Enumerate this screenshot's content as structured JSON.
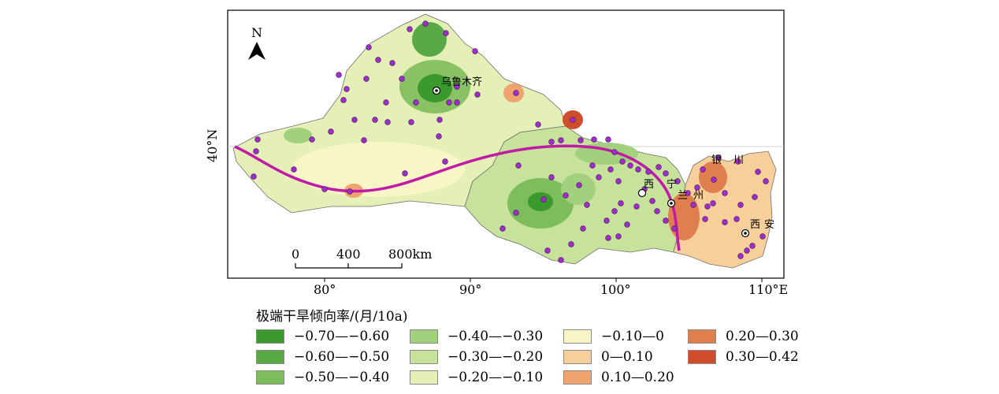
{
  "map": {
    "north_label": "N",
    "lat_label": "40°N",
    "lon_labels": [
      "80°",
      "90°",
      "100°",
      "110°E"
    ],
    "scale_labels": [
      "0",
      "400",
      "800km"
    ],
    "cities": [
      "乌鲁木齐",
      "银",
      "川",
      "西",
      "宁",
      "兰",
      "州",
      "西",
      "安"
    ],
    "colors": {
      "station": "#a22bd0",
      "route": "#c21aa8",
      "boundary": "#6f6f6f",
      "frame": "#000000"
    }
  },
  "legend": {
    "title": "极端干旱倾向率/(月/10a)",
    "items": [
      {
        "label": "−0.70—−0.60",
        "color": "#3b9a2e"
      },
      {
        "label": "−0.60—−0.50",
        "color": "#58a845"
      },
      {
        "label": "−0.50—−0.40",
        "color": "#7dbd5c"
      },
      {
        "label": "−0.40—−0.30",
        "color": "#a2d07c"
      },
      {
        "label": "−0.30—−0.20",
        "color": "#c6e29b"
      },
      {
        "label": "−0.20—−0.10",
        "color": "#e4f0b6"
      },
      {
        "label": "−0.10—0",
        "color": "#f8f6c6"
      },
      {
        "label": "0—0.10",
        "color": "#f7cf9a"
      },
      {
        "label": "0.10—0.20",
        "color": "#efa46f"
      },
      {
        "label": "0.20—0.30",
        "color": "#e07e4e"
      },
      {
        "label": "0.30—0.42",
        "color": "#cf4d2c"
      }
    ]
  }
}
